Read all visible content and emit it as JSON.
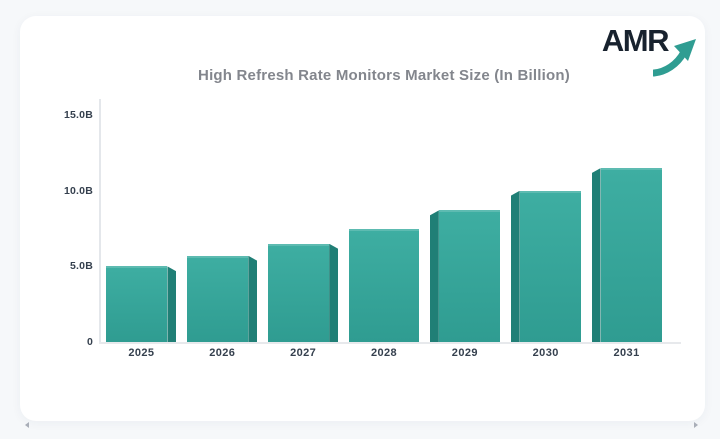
{
  "logo": {
    "text": "AMR",
    "text_color": "#18222E",
    "arrow_color": "#2F9D92"
  },
  "chart_data": {
    "type": "bar",
    "title": "High Refresh Rate Monitors Market Size (In Billion)",
    "categories": [
      "2025",
      "2026",
      "2027",
      "2028",
      "2029",
      "2030",
      "2031"
    ],
    "values": [
      5.0,
      5.7,
      6.5,
      7.5,
      8.7,
      10.0,
      11.5
    ],
    "xlabel": "",
    "ylabel": "",
    "y_ticks": [
      {
        "value": 0,
        "label": "0"
      },
      {
        "value": 5,
        "label": "5.0B"
      },
      {
        "value": 10,
        "label": "10.0B"
      },
      {
        "value": 15,
        "label": "15.0B"
      }
    ],
    "ylim": [
      0,
      16
    ],
    "grid": false,
    "legend": "none",
    "style": "3d-bars, side face toward center vanishing point",
    "colors": {
      "bar_top": "#3EAEA2",
      "bar_bottom": "#2F9C91",
      "bar_side": "#207F76",
      "axis_line": "#E4E7EB",
      "tick_label": "#35404E",
      "title": "#83868D"
    }
  },
  "pagination": {
    "prev_icon": "left-triangle",
    "next_icon": "right-triangle"
  }
}
